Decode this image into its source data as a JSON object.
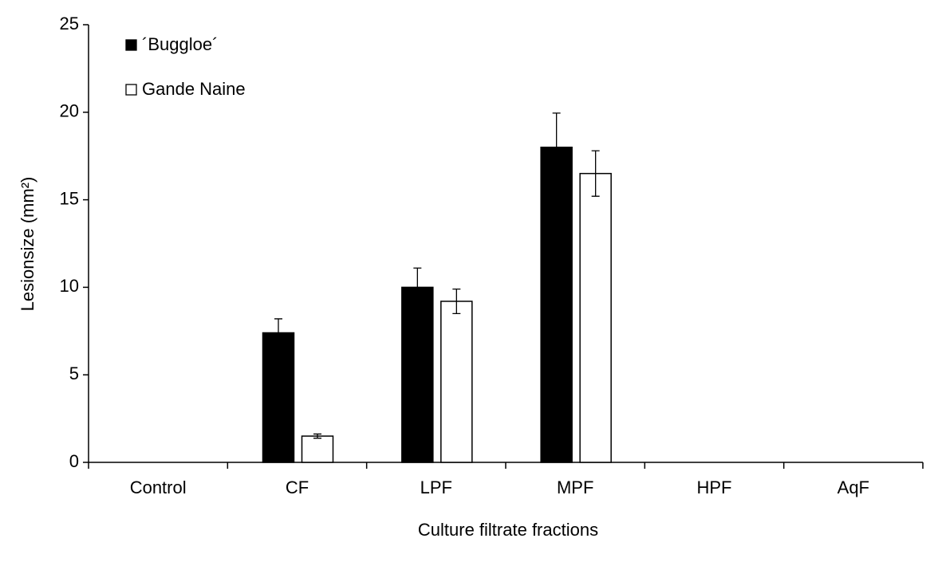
{
  "chart_data": {
    "type": "bar",
    "x_label": "Culture filtrate fractions",
    "y_label": "Lesionsize (mm²)",
    "categories": [
      "Control",
      "CF",
      "LPF",
      "MPF",
      "HPF",
      "AqF"
    ],
    "series": [
      {
        "name": "´Buggloe´",
        "color": "#000000",
        "values": [
          0,
          7.4,
          10,
          18,
          0,
          0
        ],
        "errors": [
          null,
          0.8,
          1.1,
          1.95,
          null,
          null
        ]
      },
      {
        "name": "Gande Naine",
        "color": "#ffffff",
        "values": [
          0,
          1.5,
          9.2,
          16.5,
          0,
          0
        ],
        "errors": [
          null,
          0.12,
          0.7,
          1.3,
          null,
          null
        ]
      }
    ],
    "ylim": [
      0,
      25
    ],
    "yticks": [
      0,
      5,
      10,
      15,
      20,
      25
    ],
    "grid": false
  }
}
